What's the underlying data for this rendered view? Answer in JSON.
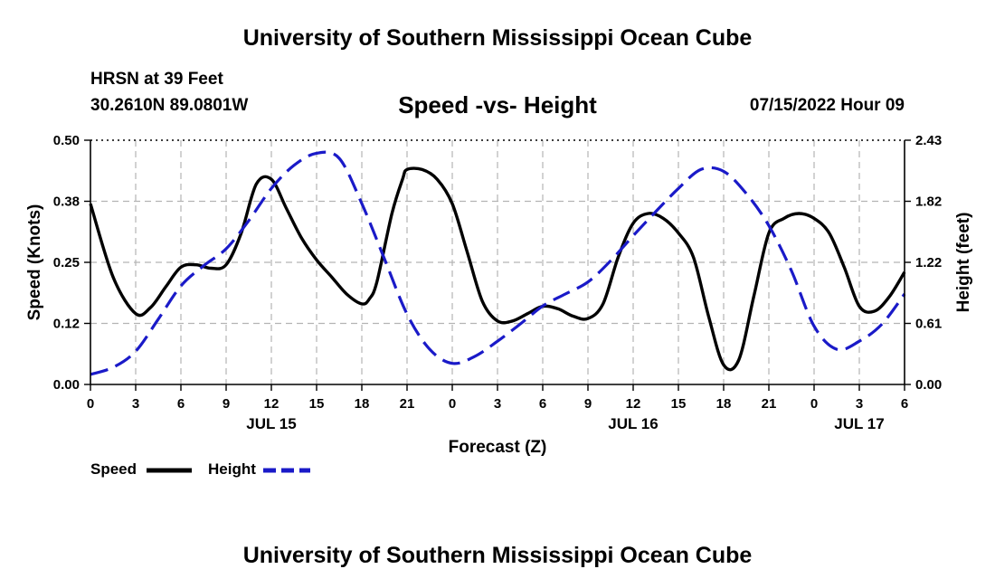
{
  "header": {
    "title": "University of Southern Mississippi Ocean Cube",
    "station": "HRSN at 39 Feet",
    "coords": "30.2610N  89.0801W",
    "subtitle": "Speed -vs- Height",
    "datetime": "07/15/2022 Hour 09"
  },
  "footer": {
    "title": "University of Southern Mississippi Ocean Cube"
  },
  "colors": {
    "speed": "#000000",
    "height": "#1a1ac8",
    "grid": "#b4b4b4"
  },
  "chart_data": {
    "type": "line",
    "title": "Speed -vs- Height",
    "xlabel": "Forecast (Z)",
    "ylabel_left": "Speed (Knots)",
    "ylabel_right": "Height (feet)",
    "x_range_hours": [
      0,
      54
    ],
    "x_tick_hours": [
      0,
      3,
      6,
      9,
      12,
      15,
      18,
      21,
      24,
      27,
      30,
      33,
      36,
      39,
      42,
      45,
      48,
      51,
      54
    ],
    "x_tick_labels": [
      "0",
      "3",
      "6",
      "9",
      "12",
      "15",
      "18",
      "21",
      "0",
      "3",
      "6",
      "9",
      "12",
      "15",
      "18",
      "21",
      "0",
      "3",
      "6"
    ],
    "date_labels": [
      {
        "hour": 12,
        "label": "JUL 15"
      },
      {
        "hour": 36,
        "label": "JUL 16"
      },
      {
        "hour": 51,
        "label": "JUL 17"
      }
    ],
    "y_left_range": [
      0,
      0.5
    ],
    "y_left_ticks": [
      0,
      0.125,
      0.25,
      0.375,
      0.5
    ],
    "y_left_tick_labels": [
      "0.00",
      "0.12",
      "0.25",
      "0.38",
      "0.50"
    ],
    "y_right_range": [
      0,
      2.43
    ],
    "y_right_ticks": [
      0,
      0.6075,
      1.215,
      1.8225,
      2.43
    ],
    "y_right_tick_labels": [
      "0.00",
      "0.61",
      "1.22",
      "1.82",
      "2.43"
    ],
    "grid": true,
    "legend": {
      "placement": "bottom-left",
      "entries": [
        "Speed",
        "Height"
      ]
    },
    "series": [
      {
        "name": "Speed",
        "axis": "left",
        "style": "solid",
        "x": [
          0,
          1.5,
          3,
          4,
          5,
          6,
          7,
          8,
          9,
          10,
          11,
          12,
          13,
          14,
          15,
          16,
          17,
          18,
          18.5,
          19,
          20,
          20.7,
          21,
          22,
          23,
          24,
          25,
          26,
          27,
          28,
          29,
          30,
          31,
          32,
          33,
          34,
          35,
          36,
          37,
          38,
          39,
          40,
          41,
          42,
          43,
          44,
          45,
          46,
          47,
          48,
          49,
          50,
          51,
          52,
          53,
          54
        ],
        "values": [
          0.37,
          0.22,
          0.145,
          0.158,
          0.2,
          0.24,
          0.245,
          0.238,
          0.245,
          0.31,
          0.41,
          0.42,
          0.36,
          0.3,
          0.255,
          0.22,
          0.185,
          0.165,
          0.175,
          0.21,
          0.35,
          0.42,
          0.44,
          0.44,
          0.42,
          0.37,
          0.27,
          0.17,
          0.13,
          0.13,
          0.145,
          0.16,
          0.155,
          0.14,
          0.135,
          0.165,
          0.26,
          0.33,
          0.35,
          0.34,
          0.31,
          0.26,
          0.14,
          0.04,
          0.05,
          0.18,
          0.31,
          0.34,
          0.35,
          0.34,
          0.31,
          0.24,
          0.16,
          0.15,
          0.18,
          0.23
        ]
      },
      {
        "name": "Height",
        "axis": "right",
        "style": "dashed",
        "x": [
          0,
          1.5,
          3,
          4.5,
          6,
          7.5,
          9,
          10.5,
          12,
          13.5,
          15,
          16.5,
          18,
          19.5,
          21,
          22.5,
          24,
          25.5,
          27,
          28.5,
          30,
          31.5,
          33,
          34.5,
          36,
          37.5,
          39,
          40.5,
          42,
          43.5,
          45,
          46.5,
          48,
          49.5,
          51,
          52.5,
          54
        ],
        "values": [
          0.1,
          0.17,
          0.33,
          0.65,
          0.98,
          1.18,
          1.35,
          1.63,
          1.95,
          2.18,
          2.3,
          2.25,
          1.8,
          1.25,
          0.7,
          0.35,
          0.21,
          0.28,
          0.43,
          0.6,
          0.78,
          0.9,
          1.02,
          1.23,
          1.48,
          1.72,
          1.95,
          2.14,
          2.12,
          1.9,
          1.58,
          1.13,
          0.58,
          0.35,
          0.43,
          0.6,
          0.9
        ]
      }
    ]
  }
}
